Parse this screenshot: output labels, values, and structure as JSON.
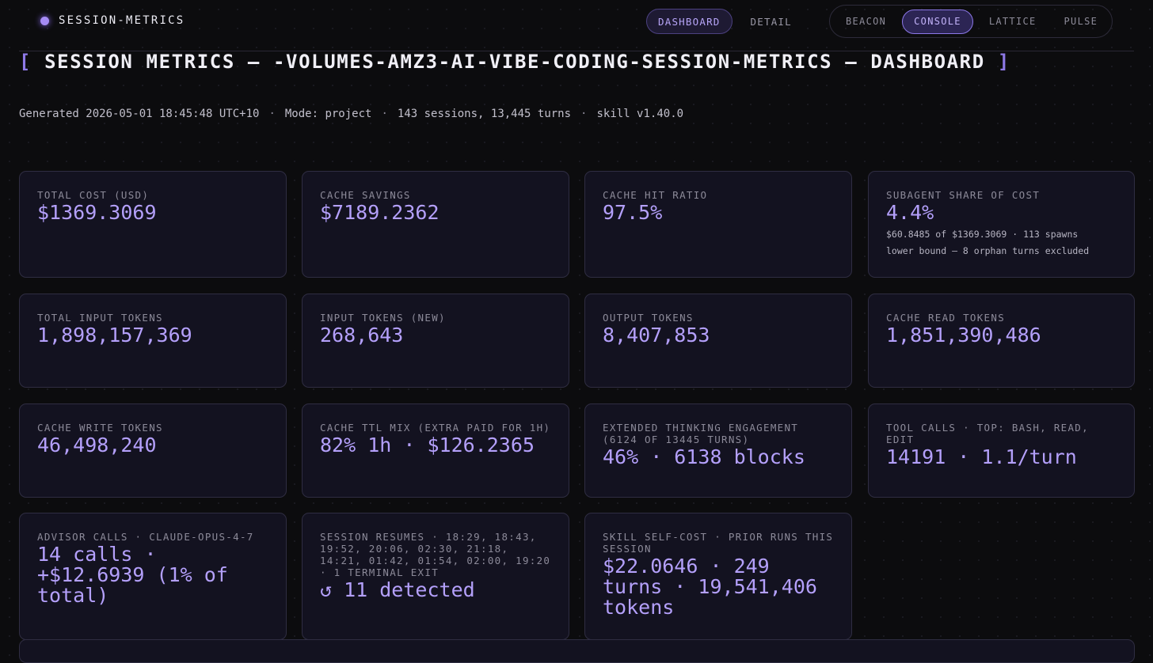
{
  "brand": {
    "name": "SESSION-METRICS"
  },
  "view_tabs": [
    {
      "label": "DASHBOARD",
      "active": true
    },
    {
      "label": "DETAIL",
      "active": false
    }
  ],
  "themes": [
    {
      "label": "BEACON",
      "active": false
    },
    {
      "label": "CONSOLE",
      "active": true
    },
    {
      "label": "LATTICE",
      "active": false
    },
    {
      "label": "PULSE",
      "active": false
    }
  ],
  "title": {
    "open_bracket": "[",
    "text": "SESSION METRICS — -VOLUMES-AMZ3-AI-VIBE-CODING-SESSION-METRICS — DASHBOARD",
    "close_bracket": "]"
  },
  "meta": {
    "generated": "Generated 2026-05-01 18:45:48 UTC+10",
    "mode": "Mode: project",
    "counts": "143 sessions, 13,445 turns",
    "skill": "skill v1.40.0",
    "separator": "·"
  },
  "cards": [
    {
      "label": "TOTAL COST (USD)",
      "value": "$1369.3069"
    },
    {
      "label": "CACHE SAVINGS",
      "value": "$7189.2362"
    },
    {
      "label": "CACHE HIT RATIO",
      "value": "97.5%"
    },
    {
      "label": "SUBAGENT SHARE OF COST",
      "value": "4.4%",
      "sub1": "$60.8485 of $1369.3069 · 113 spawns",
      "sub2": "lower bound — 8 orphan turns excluded"
    },
    {
      "label": "TOTAL INPUT TOKENS",
      "value": "1,898,157,369"
    },
    {
      "label": "INPUT TOKENS (NEW)",
      "value": "268,643"
    },
    {
      "label": "OUTPUT TOKENS",
      "value": "8,407,853"
    },
    {
      "label": "CACHE READ TOKENS",
      "value": "1,851,390,486"
    },
    {
      "label": "CACHE WRITE TOKENS",
      "value": "46,498,240"
    },
    {
      "label": "CACHE TTL MIX (EXTRA PAID FOR 1H)",
      "value": "82% 1h · $126.2365"
    },
    {
      "label": "EXTENDED THINKING ENGAGEMENT (6124 OF 13445 TURNS)",
      "value": "46% · 6138 blocks"
    },
    {
      "label": "TOOL CALLS · TOP: BASH, READ, EDIT",
      "value": "14191 · 1.1/turn"
    },
    {
      "label": "ADVISOR CALLS · CLAUDE-OPUS-4-7",
      "value": "14 calls · +$12.6939 (1% of total)"
    },
    {
      "label": "SESSION RESUMES · 18:29, 18:43, 19:52, 20:06, 02:30, 21:18, 14:21, 01:42, 01:54, 02:00, 19:20 · 1 TERMINAL EXIT",
      "value": "↺ 11 detected"
    },
    {
      "label": "SKILL SELF-COST · PRIOR RUNS THIS SESSION",
      "value": "$22.0646 · 249 turns · 19,541,406 tokens"
    }
  ],
  "colors": {
    "accent": "#b4a0fb",
    "background": "#0c0c0e",
    "card_bg": "#131220",
    "card_border": "#2f2d42"
  }
}
